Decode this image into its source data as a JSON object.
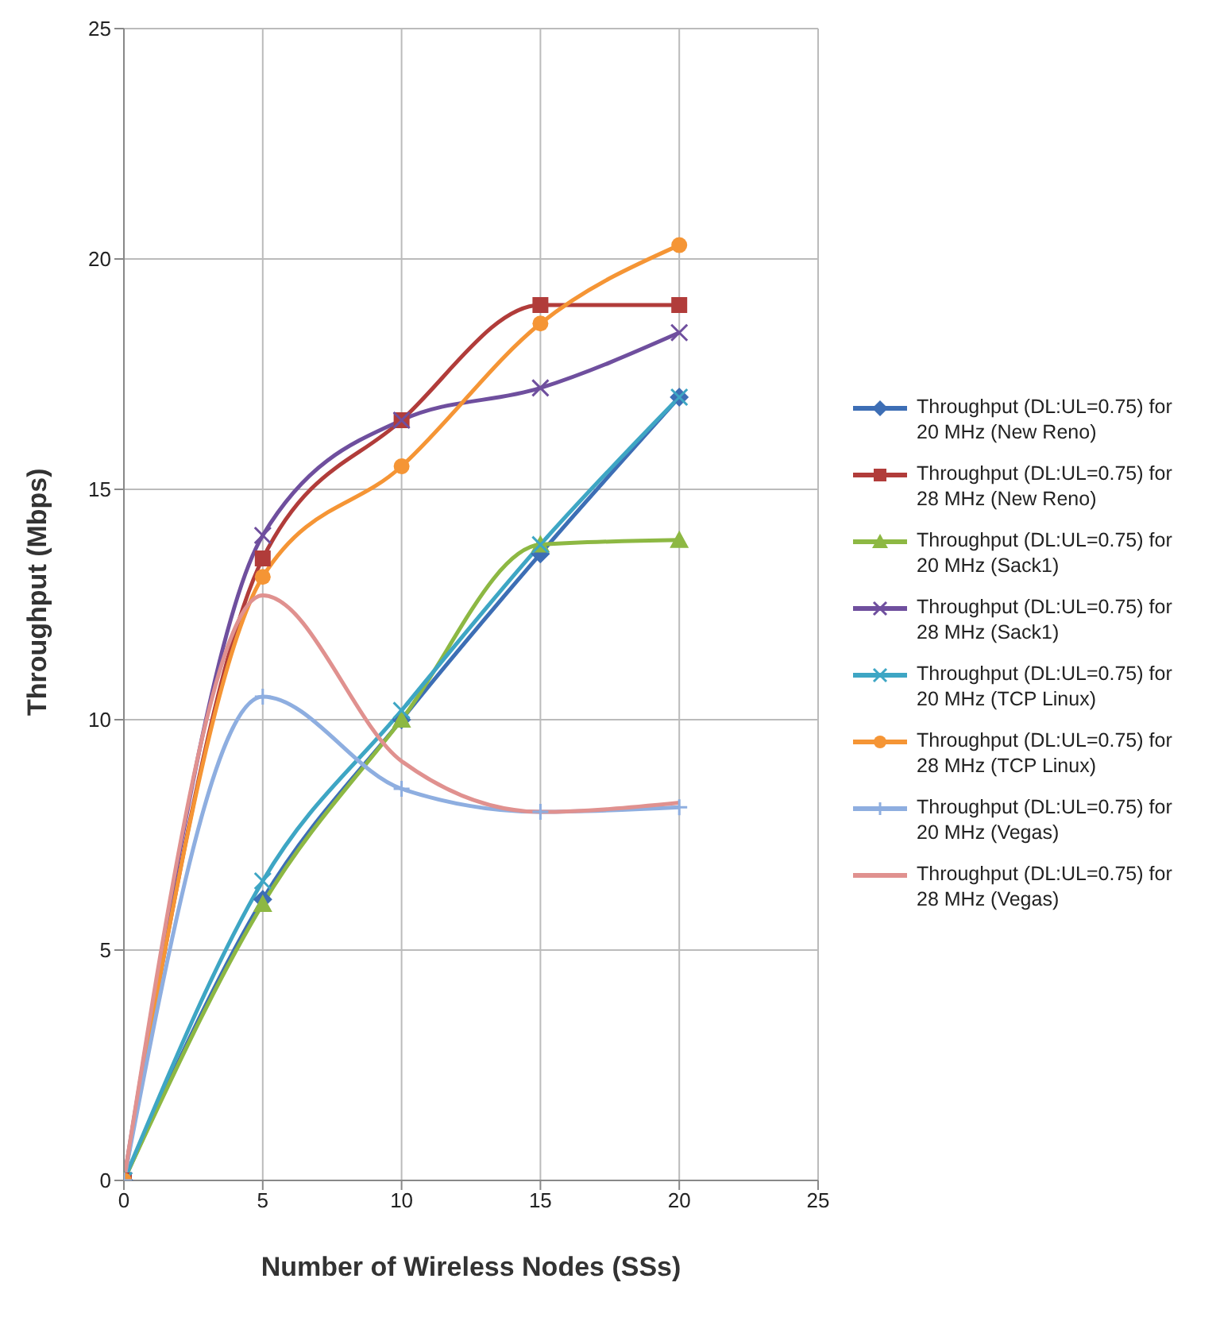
{
  "chart_data": {
    "type": "line",
    "xlabel": "Number of Wireless Nodes (SSs)",
    "ylabel": "Throughput (Mbps)",
    "x": [
      0,
      5,
      10,
      15,
      20
    ],
    "xlim": [
      0,
      25
    ],
    "xticks": [
      0,
      5,
      10,
      15,
      20,
      25
    ],
    "ylim": [
      0,
      25
    ],
    "yticks": [
      0,
      5,
      10,
      15,
      20,
      25
    ],
    "grid": true,
    "legend": "right",
    "line_style": "solid",
    "series": [
      {
        "name": "Throughput (DL:UL=0.75) for 20 MHz (New Reno)",
        "color": "#3d6eb5",
        "marker": "diamond",
        "values": [
          0,
          6.1,
          10,
          13.6,
          17
        ]
      },
      {
        "name": "Throughput (DL:UL=0.75) for 28 MHz (New Reno)",
        "color": "#b13c3a",
        "marker": "square",
        "values": [
          0,
          13.5,
          16.5,
          19,
          19
        ]
      },
      {
        "name": "Throughput (DL:UL=0.75) for 20 MHz (Sack1)",
        "color": "#8db843",
        "marker": "triangle",
        "values": [
          0,
          6,
          10,
          13.8,
          13.9
        ]
      },
      {
        "name": "Throughput (DL:UL=0.75) for 28 MHz (Sack1)",
        "color": "#6f4f9e",
        "marker": "cross",
        "values": [
          0,
          14,
          16.5,
          17.2,
          18.4
        ]
      },
      {
        "name": "Throughput (DL:UL=0.75) for 20 MHz (TCP Linux)",
        "color": "#3ea6c4",
        "marker": "cross",
        "values": [
          0,
          6.5,
          10.2,
          13.8,
          17
        ]
      },
      {
        "name": "Throughput (DL:UL=0.75) for 28 MHz (TCP Linux)",
        "color": "#f59535",
        "marker": "circle",
        "values": [
          0,
          13.1,
          15.5,
          18.6,
          20.3
        ]
      },
      {
        "name": "Throughput (DL:UL=0.75) for 20 MHz (Vegas)",
        "color": "#8eaee0",
        "marker": "plus",
        "values": [
          0,
          10.5,
          8.5,
          8,
          8.1
        ]
      },
      {
        "name": "Throughput (DL:UL=0.75) for 28 MHz (Vegas)",
        "color": "#e0918f",
        "marker": "none",
        "values": [
          0,
          12.7,
          9.1,
          8,
          8.2
        ]
      }
    ]
  }
}
